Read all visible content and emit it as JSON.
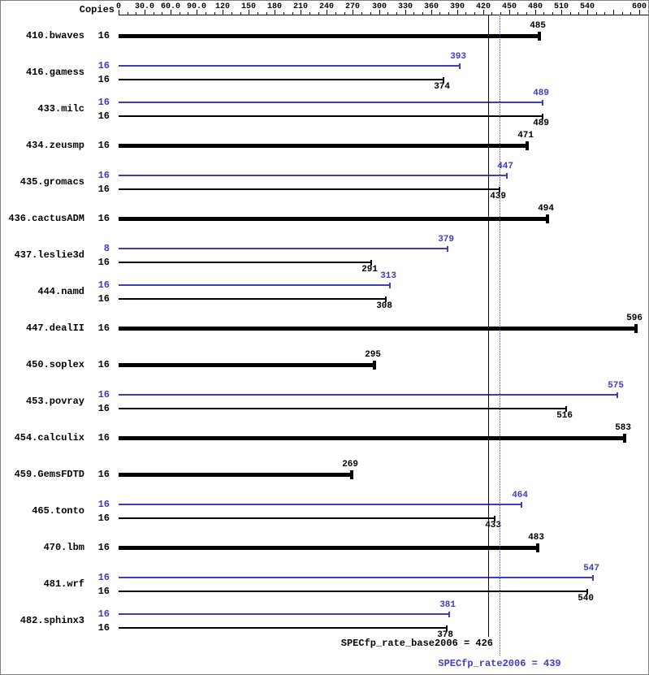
{
  "chart_data": {
    "type": "bar",
    "orientation": "horizontal",
    "title": "",
    "axis": {
      "copies_label": "Copies",
      "min": 0,
      "max": 600,
      "major_tick_interval": 30,
      "minor_tick_interval": 10,
      "tick_labels": [
        {
          "value": 0,
          "label": "0"
        },
        {
          "value": 30,
          "label": "30.0"
        },
        {
          "value": 60,
          "label": "60.0"
        },
        {
          "value": 90,
          "label": "90.0"
        },
        {
          "value": 120,
          "label": "120"
        },
        {
          "value": 150,
          "label": "150"
        },
        {
          "value": 180,
          "label": "180"
        },
        {
          "value": 210,
          "label": "210"
        },
        {
          "value": 240,
          "label": "240"
        },
        {
          "value": 270,
          "label": "270"
        },
        {
          "value": 300,
          "label": "300"
        },
        {
          "value": 330,
          "label": "330"
        },
        {
          "value": 360,
          "label": "360"
        },
        {
          "value": 390,
          "label": "390"
        },
        {
          "value": 420,
          "label": "420"
        },
        {
          "value": 450,
          "label": "450"
        },
        {
          "value": 480,
          "label": "480"
        },
        {
          "value": 510,
          "label": "510"
        },
        {
          "value": 540,
          "label": "540"
        },
        {
          "value": 600,
          "label": "600"
        }
      ]
    },
    "benchmarks": [
      {
        "name": "410.bwaves",
        "single": true,
        "base": {
          "copies": 16,
          "value": 485
        }
      },
      {
        "name": "416.gamess",
        "single": false,
        "peak": {
          "copies": 16,
          "value": 393
        },
        "base": {
          "copies": 16,
          "value": 374
        }
      },
      {
        "name": "433.milc",
        "single": false,
        "peak": {
          "copies": 16,
          "value": 489
        },
        "base": {
          "copies": 16,
          "value": 489
        }
      },
      {
        "name": "434.zeusmp",
        "single": true,
        "base": {
          "copies": 16,
          "value": 471
        }
      },
      {
        "name": "435.gromacs",
        "single": false,
        "peak": {
          "copies": 16,
          "value": 447
        },
        "base": {
          "copies": 16,
          "value": 439
        }
      },
      {
        "name": "436.cactusADM",
        "single": true,
        "base": {
          "copies": 16,
          "value": 494
        }
      },
      {
        "name": "437.leslie3d",
        "single": false,
        "peak": {
          "copies": 8,
          "value": 379
        },
        "base": {
          "copies": 16,
          "value": 291
        }
      },
      {
        "name": "444.namd",
        "single": false,
        "peak": {
          "copies": 16,
          "value": 313
        },
        "base": {
          "copies": 16,
          "value": 308
        }
      },
      {
        "name": "447.dealII",
        "single": true,
        "base": {
          "copies": 16,
          "value": 596
        }
      },
      {
        "name": "450.soplex",
        "single": true,
        "base": {
          "copies": 16,
          "value": 295
        }
      },
      {
        "name": "453.povray",
        "single": false,
        "peak": {
          "copies": 16,
          "value": 575
        },
        "base": {
          "copies": 16,
          "value": 516
        }
      },
      {
        "name": "454.calculix",
        "single": true,
        "base": {
          "copies": 16,
          "value": 583
        }
      },
      {
        "name": "459.GemsFDTD",
        "single": true,
        "base": {
          "copies": 16,
          "value": 269
        }
      },
      {
        "name": "465.tonto",
        "single": false,
        "peak": {
          "copies": 16,
          "value": 464
        },
        "base": {
          "copies": 16,
          "value": 433
        }
      },
      {
        "name": "470.lbm",
        "single": true,
        "base": {
          "copies": 16,
          "value": 483
        }
      },
      {
        "name": "481.wrf",
        "single": false,
        "peak": {
          "copies": 16,
          "value": 547
        },
        "base": {
          "copies": 16,
          "value": 540
        }
      },
      {
        "name": "482.sphinx3",
        "single": false,
        "peak": {
          "copies": 16,
          "value": 381
        },
        "base": {
          "copies": 16,
          "value": 378
        }
      }
    ],
    "summary": {
      "base_label": "SPECfp_rate_base2006 = 426",
      "base_value": 426,
      "peak_label": "SPECfp_rate2006 = 439",
      "peak_value": 439
    },
    "colors": {
      "base": "#000000",
      "peak": "#3d3dc4"
    }
  }
}
